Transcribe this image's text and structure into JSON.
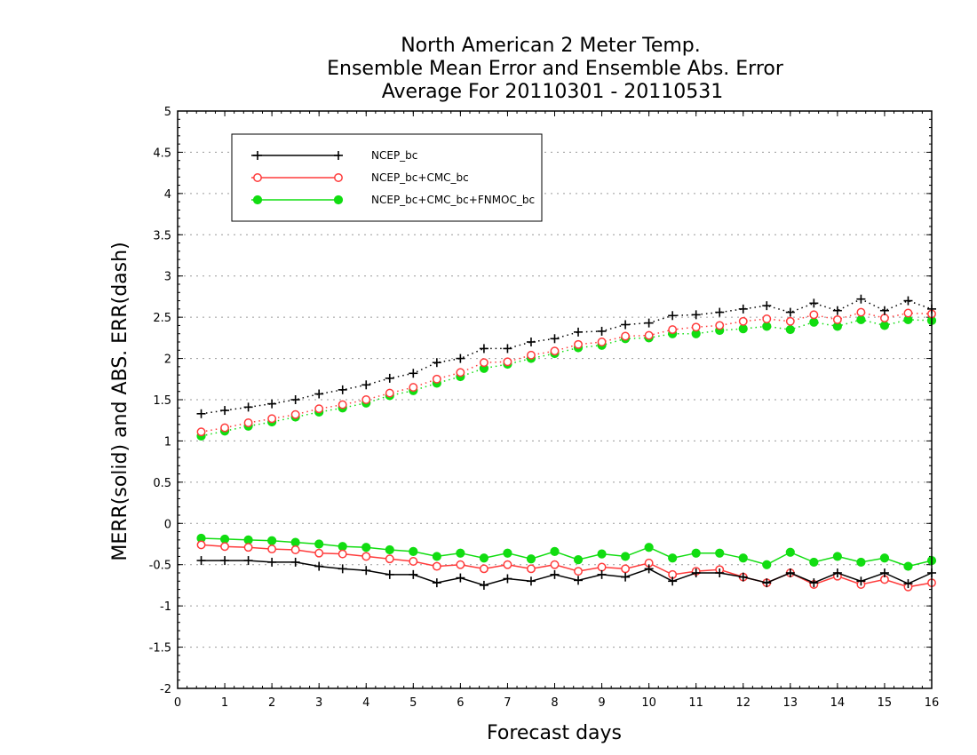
{
  "chart_data": {
    "type": "line",
    "title": [
      "North American 2 Meter Temp.",
      "Ensemble Mean Error and Ensemble Abs. Error",
      "Average For 20110301 - 20110531"
    ],
    "xlabel": "Forecast days",
    "ylabel": "MERR(solid) and ABS. ERR(dash)",
    "xlim": [
      0,
      16
    ],
    "ylim": [
      -2,
      5
    ],
    "xticks": [
      0,
      1,
      2,
      3,
      4,
      5,
      6,
      7,
      8,
      9,
      10,
      11,
      12,
      13,
      14,
      15,
      16
    ],
    "xtick_labels": [
      "0",
      "1",
      "2",
      "3",
      "4",
      "5",
      "6",
      "7",
      "8",
      "9",
      "10",
      "11",
      "12",
      "13",
      "14",
      "15",
      "16"
    ],
    "yticks": [
      -2,
      -1.5,
      -1,
      -0.5,
      0,
      0.5,
      1,
      1.5,
      2,
      2.5,
      3,
      3.5,
      4,
      4.5,
      5
    ],
    "ytick_labels": [
      "-2",
      "-1.5",
      "-1",
      "-0.5",
      "0",
      "0.5",
      "1",
      "1.5",
      "2",
      "2.5",
      "3",
      "3.5",
      "4",
      "4.5",
      "5"
    ],
    "grid": "horizontal dotted",
    "legend_position": "top-left",
    "x": [
      0.5,
      1.0,
      1.5,
      2.0,
      2.5,
      3.0,
      3.5,
      4.0,
      4.5,
      5.0,
      5.5,
      6.0,
      6.5,
      7.0,
      7.5,
      8.0,
      8.5,
      9.0,
      9.5,
      10.0,
      10.5,
      11.0,
      11.5,
      12.0,
      12.5,
      13.0,
      13.5,
      14.0,
      14.5,
      15.0,
      15.5,
      16.0
    ],
    "series": [
      {
        "name": "NCEP_bc",
        "color": "#000000",
        "marker": "plus",
        "merr": [
          -0.45,
          -0.45,
          -0.45,
          -0.47,
          -0.47,
          -0.52,
          -0.55,
          -0.57,
          -0.62,
          -0.62,
          -0.72,
          -0.66,
          -0.75,
          -0.67,
          -0.7,
          -0.62,
          -0.69,
          -0.62,
          -0.65,
          -0.55,
          -0.7,
          -0.6,
          -0.6,
          -0.65,
          -0.72,
          -0.6,
          -0.72,
          -0.6,
          -0.7,
          -0.6,
          -0.73,
          -0.6
        ],
        "abs_err": [
          1.33,
          1.37,
          1.41,
          1.45,
          1.5,
          1.57,
          1.62,
          1.68,
          1.76,
          1.82,
          1.95,
          2.0,
          2.12,
          2.12,
          2.2,
          2.24,
          2.32,
          2.33,
          2.41,
          2.43,
          2.52,
          2.53,
          2.56,
          2.6,
          2.64,
          2.56,
          2.67,
          2.58,
          2.72,
          2.58,
          2.7,
          2.6
        ]
      },
      {
        "name": "NCEP_bc+CMC_bc",
        "color": "#ff3b3b",
        "marker": "open-circle",
        "merr": [
          -0.26,
          -0.28,
          -0.29,
          -0.31,
          -0.32,
          -0.36,
          -0.37,
          -0.4,
          -0.43,
          -0.46,
          -0.52,
          -0.5,
          -0.55,
          -0.5,
          -0.55,
          -0.5,
          -0.58,
          -0.53,
          -0.55,
          -0.48,
          -0.62,
          -0.58,
          -0.56,
          -0.65,
          -0.72,
          -0.6,
          -0.74,
          -0.64,
          -0.74,
          -0.68,
          -0.77,
          -0.72
        ],
        "abs_err": [
          1.11,
          1.16,
          1.22,
          1.27,
          1.32,
          1.39,
          1.44,
          1.5,
          1.58,
          1.65,
          1.75,
          1.83,
          1.95,
          1.96,
          2.04,
          2.09,
          2.17,
          2.2,
          2.27,
          2.28,
          2.35,
          2.38,
          2.4,
          2.45,
          2.48,
          2.45,
          2.53,
          2.47,
          2.56,
          2.49,
          2.55,
          2.54
        ]
      },
      {
        "name": "NCEP_bc+CMC_bc+FNMOC_bc",
        "color": "#11dd11",
        "marker": "filled-circle",
        "merr": [
          -0.18,
          -0.19,
          -0.2,
          -0.21,
          -0.23,
          -0.25,
          -0.28,
          -0.29,
          -0.32,
          -0.34,
          -0.4,
          -0.36,
          -0.42,
          -0.36,
          -0.43,
          -0.34,
          -0.44,
          -0.37,
          -0.4,
          -0.29,
          -0.42,
          -0.36,
          -0.36,
          -0.42,
          -0.5,
          -0.35,
          -0.47,
          -0.4,
          -0.47,
          -0.42,
          -0.52,
          -0.45
        ],
        "abs_err": [
          1.06,
          1.12,
          1.18,
          1.23,
          1.29,
          1.35,
          1.4,
          1.46,
          1.55,
          1.61,
          1.7,
          1.78,
          1.88,
          1.93,
          2.0,
          2.06,
          2.13,
          2.16,
          2.24,
          2.25,
          2.3,
          2.3,
          2.34,
          2.36,
          2.39,
          2.35,
          2.44,
          2.39,
          2.47,
          2.4,
          2.47,
          2.46
        ]
      }
    ]
  }
}
